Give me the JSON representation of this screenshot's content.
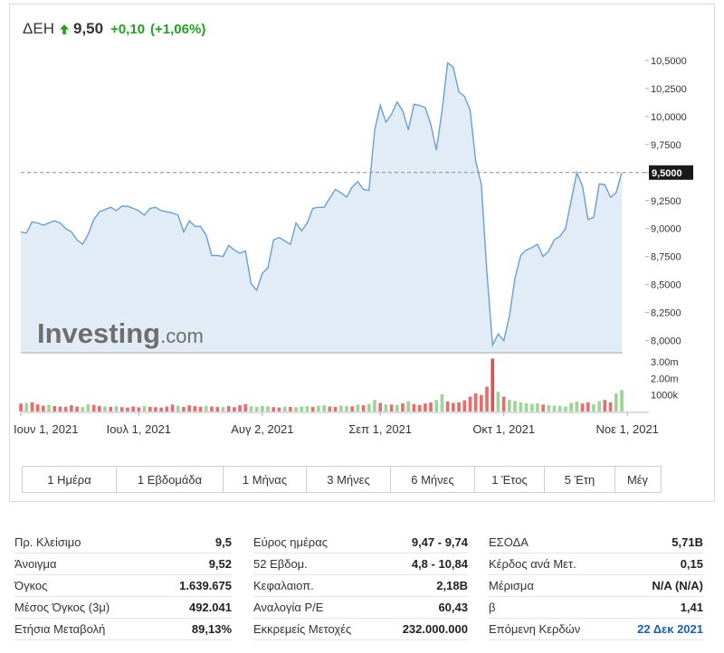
{
  "header": {
    "name": "ΔΕΗ",
    "price": "9,50",
    "change": "+0,10",
    "change_pct": "(+1,06%)",
    "arrow_icon": "arrow-up-icon",
    "up_color": "#21a021"
  },
  "watermark": {
    "brand": "Investing",
    "suffix": ".com"
  },
  "colors": {
    "line": "#6a9fd0",
    "area": "#e2ecf6",
    "vol_up": "#9ed49a",
    "vol_down": "#e36f6f",
    "vol_spike": "#d9534f",
    "price_tag_bg": "#1a1a1a",
    "link": "#1f5fad"
  },
  "chart_data": {
    "type": "area",
    "title": "",
    "xlabel": "",
    "ylabel": "",
    "ylim": [
      7.9,
      10.58
    ],
    "last_price_label": "9,5000",
    "last_price": 9.5,
    "y_ticks": [
      {
        "v": 10.5,
        "label": "10,5000"
      },
      {
        "v": 10.25,
        "label": "10,2500"
      },
      {
        "v": 10.0,
        "label": "10,0000"
      },
      {
        "v": 9.75,
        "label": "9,7500"
      },
      {
        "v": 9.5,
        "label": "9,5000"
      },
      {
        "v": 9.25,
        "label": "9,2500"
      },
      {
        "v": 9.0,
        "label": "9,0000"
      },
      {
        "v": 8.75,
        "label": "8,7500"
      },
      {
        "v": 8.5,
        "label": "8,5000"
      },
      {
        "v": 8.25,
        "label": "8,2500"
      },
      {
        "v": 8.0,
        "label": "8,0000"
      }
    ],
    "x_ticks": [
      {
        "i": 0,
        "label": "Ιουν 1, 2021"
      },
      {
        "i": 21,
        "label": "Ιουλ 1, 2021"
      },
      {
        "i": 43,
        "label": "Αυγ 2, 2021"
      },
      {
        "i": 64,
        "label": "Σεπ 1, 2021"
      },
      {
        "i": 86,
        "label": "Οκτ 1, 2021"
      },
      {
        "i": 108,
        "label": "Νοε 1, 2021"
      }
    ],
    "volume_ticks": [
      "3.00m",
      "2.00m",
      "1000k"
    ],
    "volume_max": 3500000,
    "series": [
      {
        "values": [
          8.97,
          8.96,
          9.06,
          9.05,
          9.03,
          9.05,
          9.07,
          9.05,
          9.0,
          8.97,
          8.9,
          8.86,
          8.95,
          9.08,
          9.15,
          9.17,
          9.19,
          9.16,
          9.2,
          9.2,
          9.18,
          9.16,
          9.12,
          9.18,
          9.19,
          9.16,
          9.15,
          9.14,
          9.12,
          8.97,
          9.07,
          9.02,
          9.02,
          8.94,
          8.76,
          8.76,
          8.75,
          8.85,
          8.81,
          8.78,
          8.8,
          8.51,
          8.45,
          8.6,
          8.65,
          8.9,
          8.92,
          8.89,
          8.86,
          9.05,
          8.98,
          9.05,
          9.18,
          9.19,
          9.19,
          9.27,
          9.35,
          9.32,
          9.28,
          9.37,
          9.42,
          9.35,
          9.34,
          9.88,
          10.1,
          9.95,
          10.02,
          10.13,
          10.05,
          9.88,
          10.11,
          10.1,
          10.08,
          9.93,
          9.7,
          10.05,
          10.48,
          10.44,
          10.22,
          10.18,
          10.06,
          9.6,
          9.39,
          8.6,
          7.96,
          8.06,
          8.0,
          8.22,
          8.56,
          8.76,
          8.81,
          8.83,
          8.86,
          8.75,
          8.8,
          8.9,
          8.93,
          9.0,
          9.25,
          9.5,
          9.38,
          9.08,
          9.1,
          9.4,
          9.39,
          9.28,
          9.32,
          9.5
        ]
      }
    ],
    "volume": [
      {
        "v": 480000,
        "up": false
      },
      {
        "v": 520000,
        "up": true
      },
      {
        "v": 560000,
        "up": false
      },
      {
        "v": 430000,
        "up": false
      },
      {
        "v": 350000,
        "up": false
      },
      {
        "v": 410000,
        "up": true
      },
      {
        "v": 330000,
        "up": false
      },
      {
        "v": 300000,
        "up": false
      },
      {
        "v": 280000,
        "up": false
      },
      {
        "v": 380000,
        "up": false
      },
      {
        "v": 300000,
        "up": false
      },
      {
        "v": 270000,
        "up": true
      },
      {
        "v": 450000,
        "up": true
      },
      {
        "v": 400000,
        "up": false
      },
      {
        "v": 340000,
        "up": false
      },
      {
        "v": 300000,
        "up": true
      },
      {
        "v": 280000,
        "up": false
      },
      {
        "v": 320000,
        "up": true
      },
      {
        "v": 260000,
        "up": false
      },
      {
        "v": 240000,
        "up": false
      },
      {
        "v": 300000,
        "up": false
      },
      {
        "v": 250000,
        "up": false
      },
      {
        "v": 330000,
        "up": true
      },
      {
        "v": 280000,
        "up": false
      },
      {
        "v": 260000,
        "up": false
      },
      {
        "v": 240000,
        "up": false
      },
      {
        "v": 300000,
        "up": false
      },
      {
        "v": 420000,
        "up": false
      },
      {
        "v": 350000,
        "up": true
      },
      {
        "v": 280000,
        "up": false
      },
      {
        "v": 380000,
        "up": false
      },
      {
        "v": 320000,
        "up": false
      },
      {
        "v": 290000,
        "up": false
      },
      {
        "v": 340000,
        "up": true
      },
      {
        "v": 300000,
        "up": false
      },
      {
        "v": 280000,
        "up": false
      },
      {
        "v": 260000,
        "up": true
      },
      {
        "v": 320000,
        "up": false
      },
      {
        "v": 260000,
        "up": false
      },
      {
        "v": 380000,
        "up": false
      },
      {
        "v": 450000,
        "up": false
      },
      {
        "v": 320000,
        "up": true
      },
      {
        "v": 280000,
        "up": true
      },
      {
        "v": 330000,
        "up": true
      },
      {
        "v": 310000,
        "up": true
      },
      {
        "v": 260000,
        "up": false
      },
      {
        "v": 240000,
        "up": false
      },
      {
        "v": 300000,
        "up": true
      },
      {
        "v": 280000,
        "up": false
      },
      {
        "v": 260000,
        "up": true
      },
      {
        "v": 300000,
        "up": true
      },
      {
        "v": 320000,
        "up": true
      },
      {
        "v": 280000,
        "up": false
      },
      {
        "v": 340000,
        "up": true
      },
      {
        "v": 380000,
        "up": true
      },
      {
        "v": 300000,
        "up": false
      },
      {
        "v": 280000,
        "up": false
      },
      {
        "v": 360000,
        "up": true
      },
      {
        "v": 330000,
        "up": true
      },
      {
        "v": 310000,
        "up": false
      },
      {
        "v": 420000,
        "up": true
      },
      {
        "v": 380000,
        "up": false
      },
      {
        "v": 460000,
        "up": true
      },
      {
        "v": 700000,
        "up": true
      },
      {
        "v": 520000,
        "up": false
      },
      {
        "v": 440000,
        "up": true
      },
      {
        "v": 420000,
        "up": false
      },
      {
        "v": 400000,
        "up": true
      },
      {
        "v": 500000,
        "up": false
      },
      {
        "v": 620000,
        "up": true
      },
      {
        "v": 450000,
        "up": false
      },
      {
        "v": 400000,
        "up": false
      },
      {
        "v": 480000,
        "up": false
      },
      {
        "v": 540000,
        "up": false
      },
      {
        "v": 700000,
        "up": true
      },
      {
        "v": 1050000,
        "up": true
      },
      {
        "v": 600000,
        "up": false
      },
      {
        "v": 520000,
        "up": false
      },
      {
        "v": 560000,
        "up": false
      },
      {
        "v": 680000,
        "up": false
      },
      {
        "v": 900000,
        "up": false
      },
      {
        "v": 1100000,
        "up": false
      },
      {
        "v": 1000000,
        "up": false
      },
      {
        "v": 1500000,
        "up": false
      },
      {
        "v": 3200000,
        "up": false
      },
      {
        "v": 1200000,
        "up": true
      },
      {
        "v": 900000,
        "up": false
      },
      {
        "v": 700000,
        "up": true
      },
      {
        "v": 640000,
        "up": true
      },
      {
        "v": 560000,
        "up": true
      },
      {
        "v": 500000,
        "up": true
      },
      {
        "v": 460000,
        "up": true
      },
      {
        "v": 500000,
        "up": true
      },
      {
        "v": 420000,
        "up": false
      },
      {
        "v": 380000,
        "up": true
      },
      {
        "v": 360000,
        "up": true
      },
      {
        "v": 340000,
        "up": true
      },
      {
        "v": 300000,
        "up": true
      },
      {
        "v": 520000,
        "up": true
      },
      {
        "v": 600000,
        "up": true
      },
      {
        "v": 480000,
        "up": false
      },
      {
        "v": 560000,
        "up": false
      },
      {
        "v": 440000,
        "up": true
      },
      {
        "v": 620000,
        "up": true
      },
      {
        "v": 700000,
        "up": false
      },
      {
        "v": 560000,
        "up": false
      },
      {
        "v": 1100000,
        "up": true
      },
      {
        "v": 1300000,
        "up": true
      }
    ]
  },
  "range_buttons": [
    "1 Ημέρα",
    "1 Εβδομάδα",
    "1 Μήνας",
    "3 Μήνες",
    "6 Μήνες",
    "1 Έτος",
    "5 Έτη",
    "Μέγ"
  ],
  "stats": {
    "col1": [
      {
        "label": "Πρ. Κλείσιμο",
        "value": "9,5"
      },
      {
        "label": "Άνοιγμα",
        "value": "9,52"
      },
      {
        "label": "Όγκος",
        "value": "1.639.675"
      },
      {
        "label": "Μέσος Όγκος (3μ)",
        "value": "492.041"
      },
      {
        "label": "Ετήσια Μεταβολή",
        "value": "89,13%"
      }
    ],
    "col2": [
      {
        "label": "Εύρος ημέρας",
        "value": "9,47 - 9,74"
      },
      {
        "label": "52 Εβδομ.",
        "value": "4,8 - 10,84"
      },
      {
        "label": "Κεφαλαιοπ.",
        "value": "2,18B"
      },
      {
        "label": "Αναλογία P/E",
        "value": "60,43"
      },
      {
        "label": "Εκκρεμείς Μετοχές",
        "value": "232.000.000"
      }
    ],
    "col3": [
      {
        "label": "ΕΣΟΔΑ",
        "value": "5,71B"
      },
      {
        "label": "Κέρδος ανά Μετ.",
        "value": "0,15"
      },
      {
        "label": "Μέρισμα",
        "value": "N/A (N/A)"
      },
      {
        "label": "β",
        "value": "1,41"
      },
      {
        "label": "Επόμενη Κερδών",
        "value": "22 Δεκ 2021",
        "link": true
      }
    ]
  }
}
